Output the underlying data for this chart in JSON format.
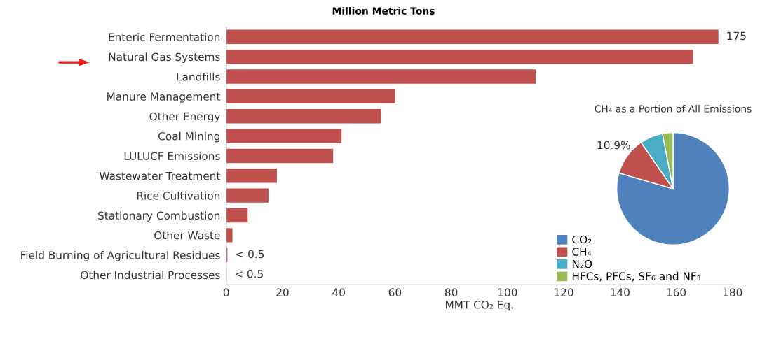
{
  "chart_data": [
    {
      "type": "bar",
      "orientation": "horizontal",
      "title": "Million Metric Tons",
      "xlabel": "MMT CO₂ Eq.",
      "categories": [
        "Enteric Fermentation",
        "Natural Gas Systems",
        "Landfills",
        "Manure Management",
        "Other Energy",
        "Coal Mining",
        "LULUCF Emissions",
        "Wastewater Treatment",
        "Rice Cultivation",
        "Stationary Combustion",
        "Other Waste",
        "Field Burning of Agricultural Residues",
        "Other Industrial Processes"
      ],
      "values": [
        175,
        166,
        110,
        60,
        55,
        41,
        38,
        18,
        15,
        7.6,
        2.2,
        0.4,
        0.1
      ],
      "value_labels": [
        "175",
        null,
        null,
        null,
        null,
        null,
        null,
        null,
        null,
        null,
        null,
        "< 0.5",
        "< 0.5"
      ],
      "color": "#c0504d",
      "xlim": [
        0,
        180
      ],
      "xticks": [
        0,
        20,
        40,
        60,
        80,
        100,
        120,
        140,
        160,
        180
      ],
      "grid": false
    },
    {
      "type": "pie",
      "title": "CH₄ as a Portion of All Emissions",
      "categories": [
        "CO₂",
        "CH₄",
        "N₂O",
        "HFCs, PFCs, SF₆ and NF₃"
      ],
      "values": [
        79.5,
        10.9,
        6.6,
        3.0
      ],
      "value_labels": [
        null,
        "10.9%",
        null,
        null
      ],
      "colors": [
        "#4f81bd",
        "#c0504d",
        "#4bacc6",
        "#9bbb59"
      ],
      "legend": "left"
    }
  ]
}
